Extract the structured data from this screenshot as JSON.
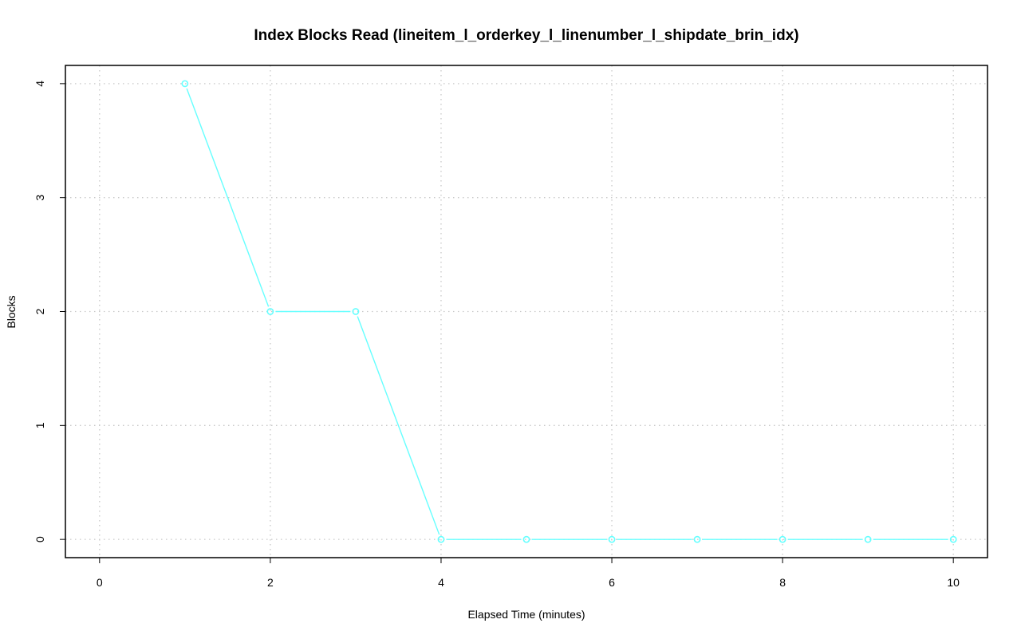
{
  "chart_data": {
    "type": "line",
    "title": "Index Blocks Read (lineitem_l_orderkey_l_linenumber_l_shipdate_brin_idx)",
    "xlabel": "Elapsed Time (minutes)",
    "ylabel": "Blocks",
    "xlim": [
      -0.4,
      10.4
    ],
    "ylim": [
      -0.16,
      4.16
    ],
    "xticks": [
      0,
      2,
      4,
      6,
      8,
      10
    ],
    "yticks": [
      0,
      1,
      2,
      3,
      4
    ],
    "grid": true,
    "series": [
      {
        "color": "#66ffff",
        "marker": "open-circle",
        "x": [
          1,
          2,
          3,
          4,
          5,
          6,
          7,
          8,
          9,
          10
        ],
        "y": [
          4,
          2,
          2,
          0,
          0,
          0,
          0,
          0,
          0,
          0
        ]
      }
    ]
  }
}
